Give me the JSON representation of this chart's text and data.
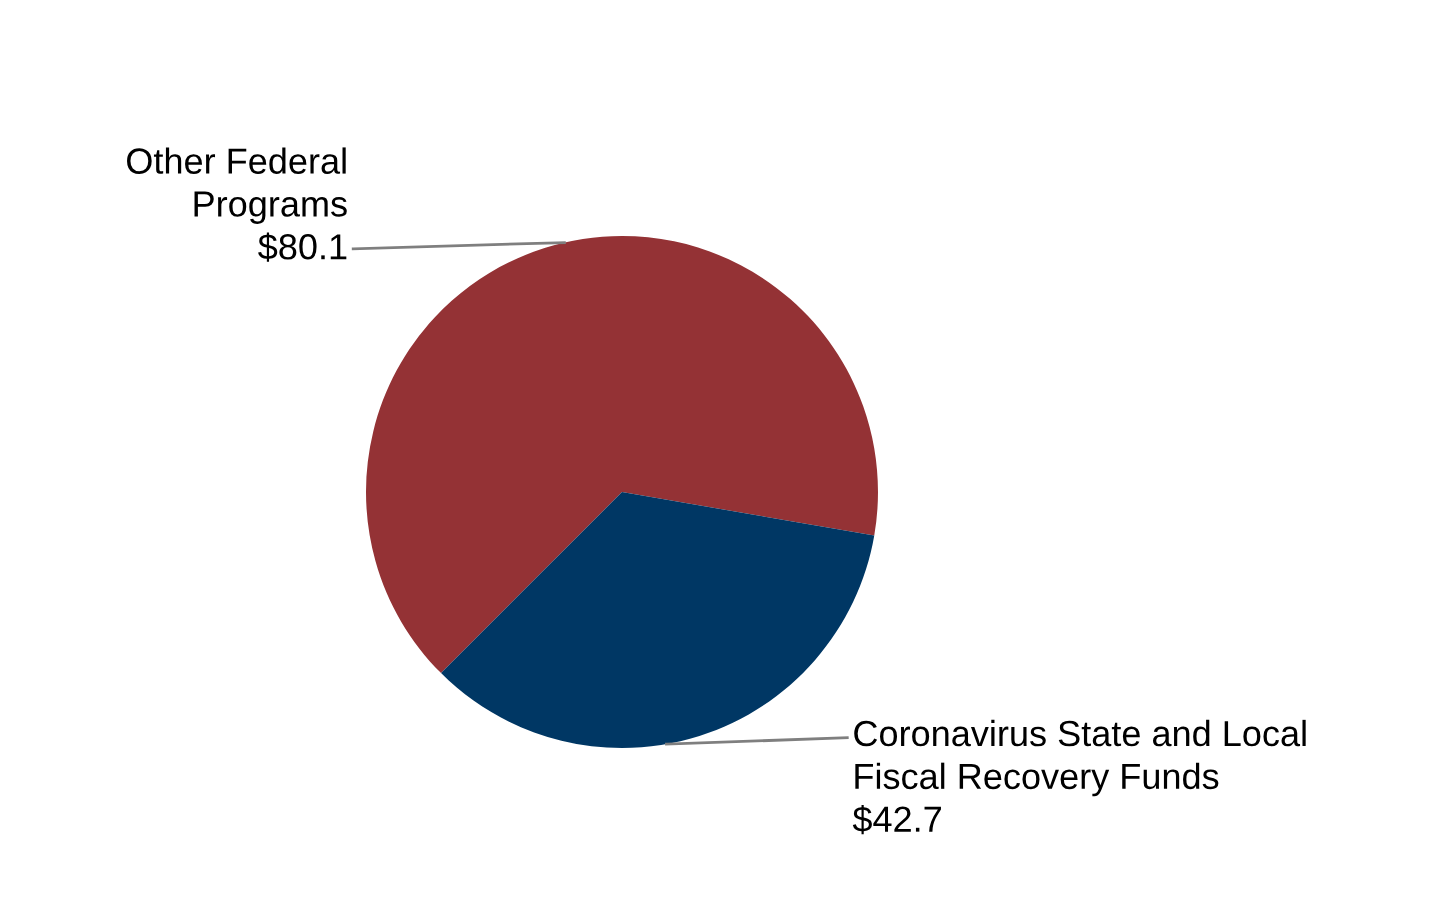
{
  "chart_data": {
    "type": "pie",
    "categories": [
      "Other Federal\nPrograms",
      "Coronavirus State and Local\nFiscal Recovery Funds"
    ],
    "values": [
      80.1,
      42.7
    ],
    "colors": [
      "#943235",
      "#003764"
    ],
    "value_labels": [
      "$80.1",
      "$42.7"
    ],
    "legend": false
  }
}
